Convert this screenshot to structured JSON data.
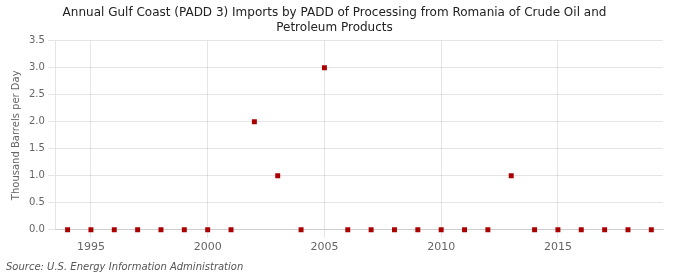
{
  "chart_data": {
    "type": "scatter",
    "title": "Annual Gulf Coast (PADD 3) Imports by PADD of Processing from Romania of Crude Oil and\nPetroleum Products",
    "ylabel": "Thousand Barrels per Day",
    "annotations": [
      "Source: U.S. Energy Information Administration"
    ],
    "x": [
      1994,
      1995,
      1996,
      1997,
      1998,
      1999,
      2000,
      2001,
      2002,
      2003,
      2004,
      2005,
      2006,
      2007,
      2008,
      2009,
      2010,
      2011,
      2012,
      2013,
      2014,
      2015,
      2016,
      2017,
      2018,
      2019
    ],
    "values": [
      0,
      0,
      0,
      0,
      0,
      0,
      0,
      0,
      2.0,
      1.0,
      0,
      3.0,
      0,
      0,
      0,
      0,
      0,
      0,
      0,
      1.0,
      0,
      0,
      0,
      0,
      0,
      0
    ],
    "color": "#aa0000",
    "marker": "square",
    "xlim": [
      1993.5,
      2019.5
    ],
    "xticks": [
      1995,
      2000,
      2005,
      2010,
      2015
    ],
    "ylim": [
      0.0,
      3.5
    ],
    "yticks": [
      {
        "value": 0,
        "label": "0.0"
      },
      0.5,
      {
        "value": 1,
        "label": "1.0"
      },
      1.5,
      {
        "value": 2,
        "label": "2.0"
      },
      2.5,
      {
        "value": 3,
        "label": "3.0"
      },
      3.5
    ],
    "grid": true
  }
}
